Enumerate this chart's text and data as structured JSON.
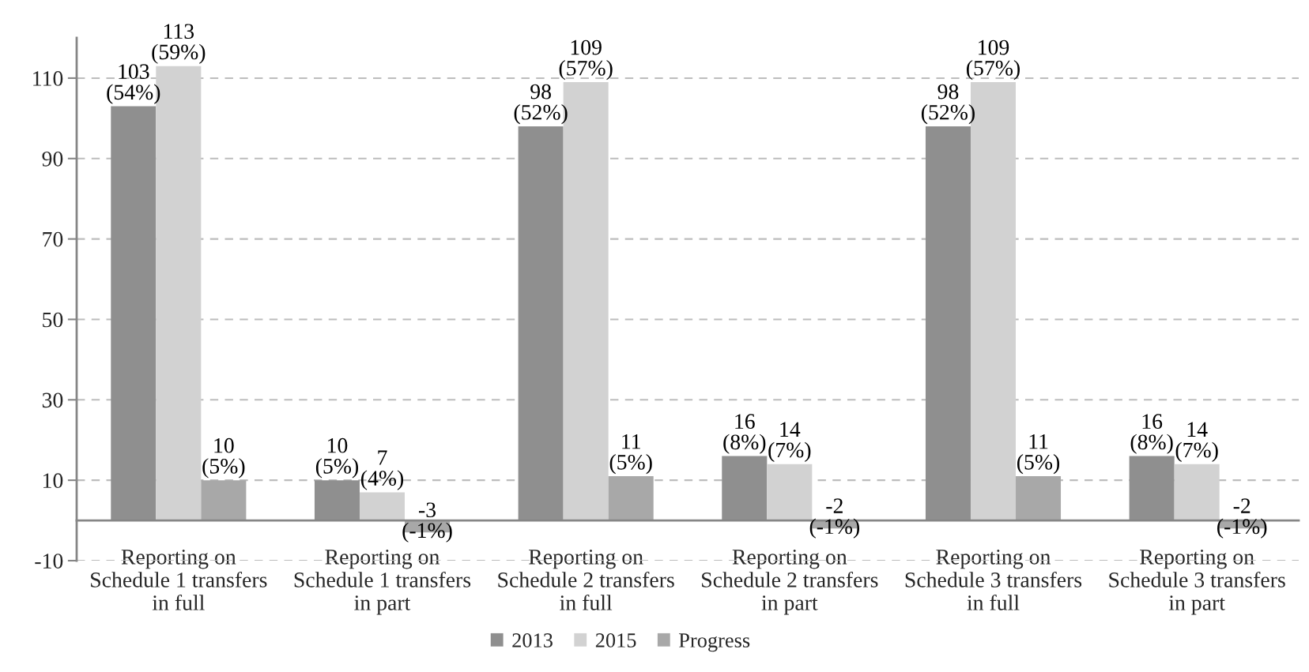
{
  "chart_data": {
    "type": "bar",
    "categories": [
      "Reporting on\nSchedule 1 transfers\nin full",
      "Reporting on\nSchedule 1 transfers\nin part",
      "Reporting on\nSchedule 2 transfers\nin full",
      "Reporting on\nSchedule 2 transfers\nin part",
      "Reporting on\nSchedule 3 transfers\nin full",
      "Reporting on\nSchedule 3 transfers\nin part"
    ],
    "series": [
      {
        "name": "2013",
        "color": "#8f8f8f",
        "values": [
          103,
          10,
          98,
          16,
          98,
          16
        ],
        "value_labels": [
          "103\n(54%)",
          "10\n(5%)",
          "98\n(52%)",
          "16\n(8%)",
          "98\n(52%)",
          "16\n(8%)"
        ]
      },
      {
        "name": "2015",
        "color": "#d2d2d2",
        "values": [
          113,
          7,
          109,
          14,
          109,
          14
        ],
        "value_labels": [
          "113\n(59%)",
          "7\n(4%)",
          "109\n(57%)",
          "14\n(7%)",
          "109\n(57%)",
          "14\n(7%)"
        ]
      },
      {
        "name": "Progress",
        "color": "#a8a8a8",
        "values": [
          10,
          -3,
          11,
          -2,
          11,
          -2
        ],
        "value_labels": [
          "10\n(5%)",
          "-3\n(-1%)",
          "11\n(5%)",
          "-2\n(-1%)",
          "11\n(5%)",
          "-2\n(-1%)"
        ]
      }
    ],
    "ylim": [
      -10,
      120
    ],
    "yticks": [
      -10,
      10,
      30,
      50,
      70,
      90,
      110
    ],
    "grid": "y",
    "legend": "bottom"
  }
}
